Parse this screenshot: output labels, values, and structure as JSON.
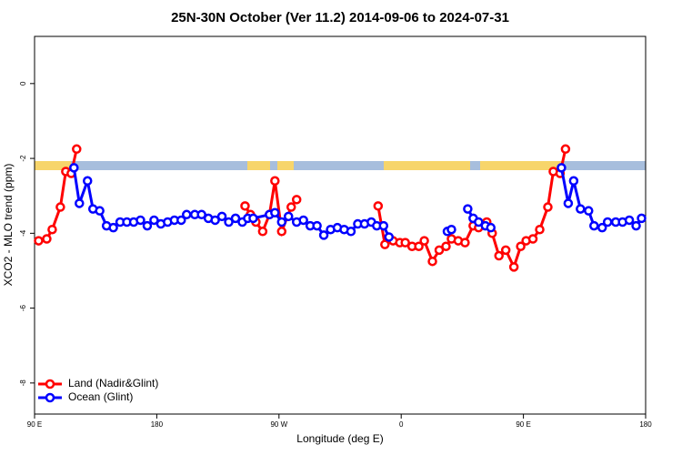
{
  "chart_data": {
    "type": "line",
    "title": "25N-30N October (Ver 11.2)   2014-09-06 to 2024-07-31",
    "x_label": "Longitude (deg E)",
    "y_label": "XCO2 - MLO trend (ppm)",
    "xlim": [
      90,
      540
    ],
    "xticks": [
      {
        "value": 90,
        "label": "90 E"
      },
      180,
      {
        "value": 270,
        "label": "90 W"
      },
      {
        "value": 360,
        "label": "0"
      },
      {
        "value": 450,
        "label": "90 E"
      },
      {
        "value": 540,
        "label": "180"
      }
    ],
    "ylim": [
      -8.83,
      1.26
    ],
    "yticks": [
      0,
      -2,
      -4,
      -6,
      -8
    ],
    "legend": "bottom-left",
    "series": [
      {
        "name": "Land (Nadir&Glint)",
        "color": "#ff0000",
        "x": [
          93,
          99,
          103,
          109,
          113,
          117,
          121,
          null,
          245,
          249,
          253,
          258,
          263,
          267,
          272,
          279,
          283,
          null,
          343,
          348,
          354,
          359,
          363,
          368,
          373,
          377,
          383,
          388,
          393,
          397,
          402,
          407,
          413,
          417,
          423,
          427,
          432,
          437,
          443,
          448,
          452,
          457,
          462,
          468,
          472,
          477,
          481
        ],
        "values": [
          -4.2,
          -4.15,
          -3.9,
          -3.3,
          -2.35,
          -2.4,
          -1.75,
          null,
          -3.27,
          -3.5,
          -3.7,
          -3.95,
          -3.5,
          -2.6,
          -3.95,
          -3.3,
          -3.1,
          null,
          -3.27,
          -4.3,
          -4.2,
          -4.25,
          -4.25,
          -4.35,
          -4.35,
          -4.2,
          -4.75,
          -4.45,
          -4.35,
          -4.15,
          -4.2,
          -4.25,
          -3.8,
          -3.85,
          -3.7,
          -4.0,
          -4.6,
          -4.45,
          -4.9,
          -4.35,
          -4.2,
          -4.15,
          -3.9,
          -3.3,
          -2.35,
          -2.4,
          -1.75
        ]
      },
      {
        "name": "Ocean (Glint)",
        "color": "#0000ff",
        "x": [
          119,
          123,
          129,
          133,
          138,
          143,
          148,
          153,
          158,
          163,
          168,
          173,
          178,
          183,
          188,
          193,
          198,
          202,
          208,
          213,
          218,
          223,
          228,
          233,
          238,
          243,
          247,
          251,
          263,
          267,
          272,
          277,
          283,
          288,
          293,
          298,
          303,
          308,
          313,
          318,
          323,
          328,
          333,
          338,
          342,
          347,
          351,
          null,
          394,
          397,
          null,
          409,
          413,
          417,
          422,
          426,
          null,
          478,
          483,
          487,
          492,
          498,
          502,
          508,
          512,
          518,
          523,
          528,
          533,
          537
        ],
        "values": [
          -2.25,
          -3.2,
          -2.6,
          -3.35,
          -3.4,
          -3.8,
          -3.85,
          -3.7,
          -3.7,
          -3.7,
          -3.65,
          -3.8,
          -3.65,
          -3.75,
          -3.7,
          -3.65,
          -3.65,
          -3.5,
          -3.5,
          -3.5,
          -3.6,
          -3.65,
          -3.55,
          -3.7,
          -3.6,
          -3.7,
          -3.6,
          -3.6,
          -3.5,
          -3.45,
          -3.7,
          -3.55,
          -3.7,
          -3.65,
          -3.8,
          -3.8,
          -4.05,
          -3.9,
          -3.85,
          -3.9,
          -3.95,
          -3.75,
          -3.75,
          -3.7,
          -3.8,
          -3.8,
          -4.1,
          null,
          -3.95,
          -3.9,
          null,
          -3.35,
          -3.6,
          -3.7,
          -3.8,
          -3.85,
          null,
          -2.25,
          -3.2,
          -2.6,
          -3.35,
          -3.4,
          -3.8,
          -3.85,
          -3.7,
          -3.7,
          -3.7,
          -3.65,
          -3.8,
          -3.6
        ]
      }
    ]
  }
}
